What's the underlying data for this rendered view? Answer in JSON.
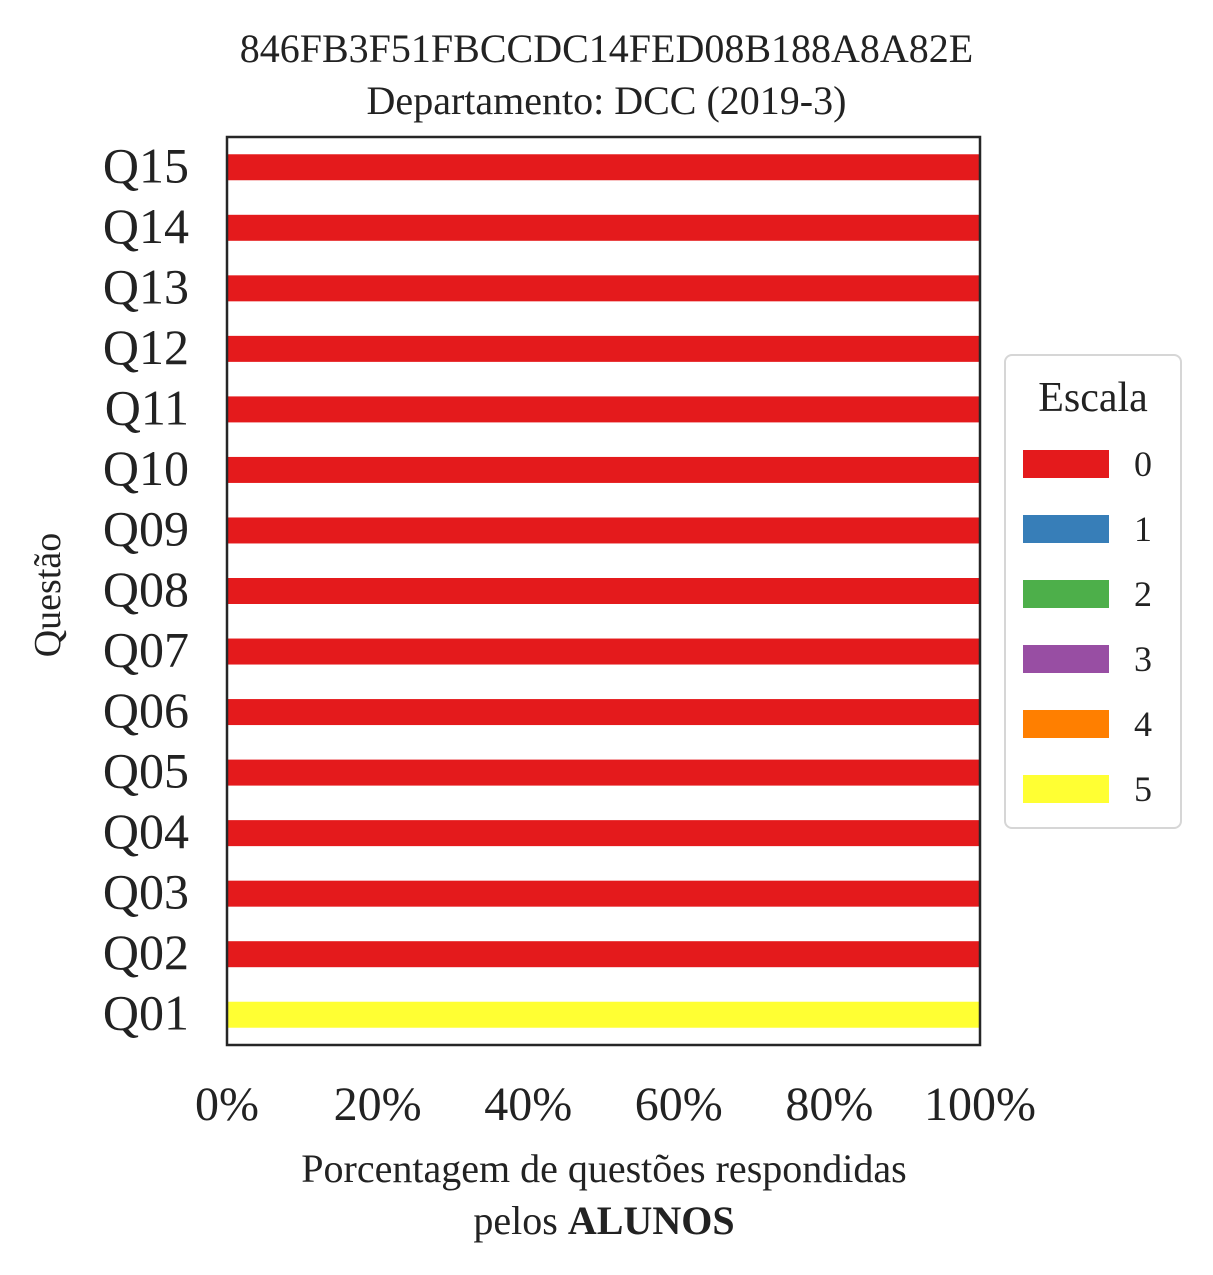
{
  "chart_data": {
    "type": "bar",
    "orientation": "horizontal",
    "stacked": true,
    "title": "846FB3F51FBCCDC14FED08B188A8A82E",
    "subtitle": "Departamento: DCC (2019-3)",
    "ylabel": "Questão",
    "xlabel_line1": "Porcentagem de questões respondidas",
    "xlabel_line2_prefix": "pelos",
    "xlabel_line2_bold": "ALUNOS",
    "xlim": [
      0,
      100
    ],
    "xticks": [
      "0%",
      "20%",
      "40%",
      "60%",
      "80%",
      "100%"
    ],
    "grid": false,
    "categories": [
      "Q01",
      "Q02",
      "Q03",
      "Q04",
      "Q05",
      "Q06",
      "Q07",
      "Q08",
      "Q09",
      "Q10",
      "Q11",
      "Q12",
      "Q13",
      "Q14",
      "Q15"
    ],
    "legend": {
      "title": "Escala",
      "placement": "center-right, outside"
    },
    "series": [
      {
        "name": "0",
        "color": "#e41a1c",
        "values": [
          0,
          100,
          100,
          100,
          100,
          100,
          100,
          100,
          100,
          100,
          100,
          100,
          100,
          100,
          100
        ]
      },
      {
        "name": "1",
        "color": "#377eb8",
        "values": [
          0,
          0,
          0,
          0,
          0,
          0,
          0,
          0,
          0,
          0,
          0,
          0,
          0,
          0,
          0
        ]
      },
      {
        "name": "2",
        "color": "#4daf4a",
        "values": [
          0,
          0,
          0,
          0,
          0,
          0,
          0,
          0,
          0,
          0,
          0,
          0,
          0,
          0,
          0
        ]
      },
      {
        "name": "3",
        "color": "#984ea3",
        "values": [
          0,
          0,
          0,
          0,
          0,
          0,
          0,
          0,
          0,
          0,
          0,
          0,
          0,
          0,
          0
        ]
      },
      {
        "name": "4",
        "color": "#ff7f00",
        "values": [
          0,
          0,
          0,
          0,
          0,
          0,
          0,
          0,
          0,
          0,
          0,
          0,
          0,
          0,
          0
        ]
      },
      {
        "name": "5",
        "color": "#ffff33",
        "values": [
          100,
          0,
          0,
          0,
          0,
          0,
          0,
          0,
          0,
          0,
          0,
          0,
          0,
          0,
          0
        ]
      }
    ]
  }
}
